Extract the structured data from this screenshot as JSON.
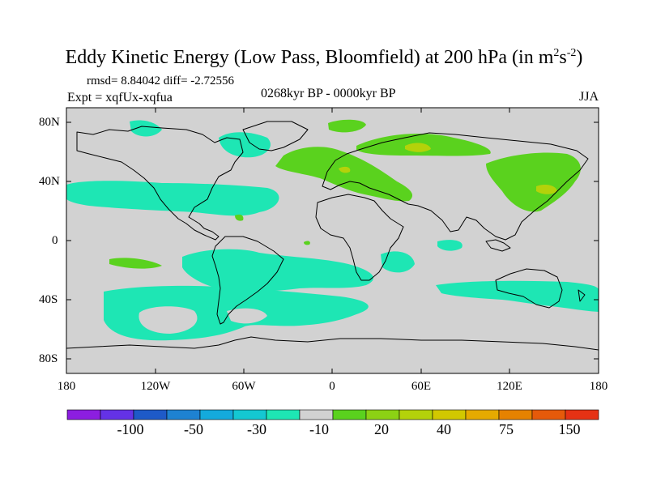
{
  "title": {
    "main": "Eddy Kinetic Energy (Low Pass, Bloomfield) at 200 hPa (in m",
    "sup1": "2",
    "mid": "s",
    "sup2": "-2",
    "end": ")"
  },
  "stats": "rmsd= 8.84042 diff= -2.72556",
  "expt": "Expt = xqfUx-xqfua",
  "period": "0268kyr BP - 0000kyr BP",
  "season": "JJA",
  "lat_labels": [
    "80N",
    "40N",
    "0",
    "40S",
    "80S"
  ],
  "lon_labels": [
    "180",
    "120W",
    "60W",
    "0",
    "60E",
    "120E",
    "180"
  ],
  "colorbar": {
    "colors": [
      "#8c1ee0",
      "#6432e6",
      "#1e5ac8",
      "#1e82d2",
      "#14aadc",
      "#14c8d2",
      "#1ee6b4",
      "#d2d2d2",
      "#5ad21e",
      "#8cd214",
      "#b4d20a",
      "#d2c800",
      "#e6aa00",
      "#e68200",
      "#e65a0a",
      "#e63214"
    ],
    "labels": [
      "-100",
      "-50",
      "-30",
      "-10",
      "20",
      "40",
      "75",
      "150"
    ]
  }
}
